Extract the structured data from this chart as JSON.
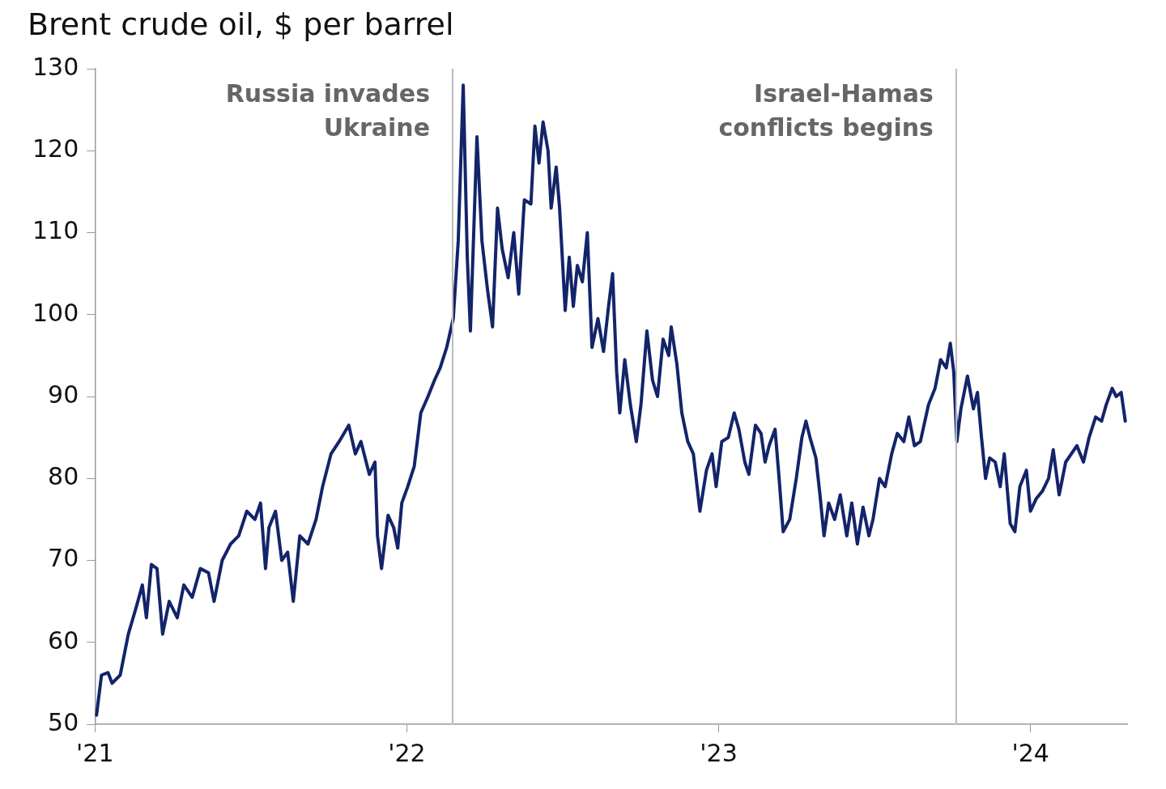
{
  "chart_data": {
    "type": "line",
    "title": "Brent crude oil, $ per barrel",
    "marker": "none",
    "line_style": "solid",
    "grid": false,
    "legend": false,
    "xlim": [
      2021,
      2024.31
    ],
    "xticks": [
      {
        "value": 2021,
        "label": "'21"
      },
      {
        "value": 2022,
        "label": "'22"
      },
      {
        "value": 2023,
        "label": "'23"
      },
      {
        "value": 2024,
        "label": "'24"
      }
    ],
    "ylim": [
      50,
      130
    ],
    "yticks": [
      50,
      60,
      70,
      80,
      90,
      100,
      110,
      120,
      130
    ],
    "ref_lines": [
      {
        "axis": "x",
        "value": 2022.147,
        "label": "Russia invades Ukraine",
        "color": "#bbbbbb"
      },
      {
        "axis": "x",
        "value": 2023.762,
        "label": "Israel-Hamas conflicts begins",
        "color": "#bbbbbb"
      }
    ],
    "series": [
      {
        "color": "#13246a",
        "x": [
          2021.005,
          2021.021,
          2021.042,
          2021.055,
          2021.081,
          2021.107,
          2021.134,
          2021.152,
          2021.165,
          2021.181,
          2021.199,
          2021.217,
          2021.238,
          2021.264,
          2021.285,
          2021.312,
          2021.338,
          2021.364,
          2021.382,
          2021.408,
          2021.435,
          2021.461,
          2021.487,
          2021.513,
          2021.531,
          2021.547,
          2021.558,
          2021.579,
          2021.599,
          2021.618,
          2021.636,
          2021.657,
          2021.683,
          2021.709,
          2021.73,
          2021.757,
          2021.783,
          2021.814,
          2021.835,
          2021.853,
          2021.88,
          2021.898,
          2021.906,
          2021.919,
          2021.94,
          2021.958,
          2021.971,
          2021.984,
          2022.003,
          2022.024,
          2022.045,
          2022.068,
          2022.089,
          2022.107,
          2022.128,
          2022.149,
          2022.165,
          2022.181,
          2022.194,
          2022.204,
          2022.225,
          2022.241,
          2022.259,
          2022.275,
          2022.291,
          2022.306,
          2022.325,
          2022.343,
          2022.359,
          2022.377,
          2022.398,
          2022.411,
          2022.424,
          2022.437,
          2022.453,
          2022.463,
          2022.479,
          2022.49,
          2022.508,
          2022.521,
          2022.534,
          2022.547,
          2022.563,
          2022.579,
          2022.594,
          2022.613,
          2022.631,
          2022.647,
          2022.66,
          2022.673,
          2022.683,
          2022.699,
          2022.717,
          2022.736,
          2022.751,
          2022.77,
          2022.788,
          2022.804,
          2022.822,
          2022.84,
          2022.848,
          2022.866,
          2022.882,
          2022.901,
          2022.919,
          2022.94,
          2022.961,
          2022.979,
          2022.992,
          2023.01,
          2023.031,
          2023.05,
          2023.065,
          2023.084,
          2023.097,
          2023.118,
          2023.136,
          2023.149,
          2023.162,
          2023.181,
          2023.194,
          2023.207,
          2023.228,
          2023.249,
          2023.267,
          2023.28,
          2023.293,
          2023.312,
          2023.325,
          2023.338,
          2023.353,
          2023.372,
          2023.39,
          2023.411,
          2023.427,
          2023.445,
          2023.463,
          2023.482,
          2023.495,
          2023.516,
          2023.534,
          2023.555,
          2023.573,
          2023.594,
          2023.61,
          2023.628,
          2023.647,
          2023.673,
          2023.694,
          2023.712,
          2023.73,
          2023.743,
          2023.754,
          2023.764,
          2023.777,
          2023.798,
          2023.817,
          2023.83,
          2023.843,
          2023.856,
          2023.869,
          2023.887,
          2023.903,
          2023.916,
          2023.935,
          2023.95,
          2023.966,
          2023.987,
          2024.0,
          2024.018,
          2024.039,
          2024.058,
          2024.073,
          2024.092,
          2024.113,
          2024.131,
          2024.149,
          2024.17,
          2024.188,
          2024.209,
          2024.228,
          2024.243,
          2024.262,
          2024.275,
          2024.291,
          2024.304
        ],
        "values": [
          51.1,
          56,
          56.3,
          55,
          56,
          61,
          64.5,
          67,
          63,
          69.5,
          69,
          61,
          65,
          63,
          67,
          65.5,
          69,
          68.5,
          65,
          70,
          72,
          73,
          76,
          75,
          77,
          69,
          74,
          76,
          70,
          71,
          65,
          73,
          72,
          75,
          79,
          83,
          84.5,
          86.5,
          83,
          84.5,
          80.5,
          82,
          73,
          69,
          75.5,
          74,
          71.5,
          77,
          79,
          81.5,
          88,
          90,
          92,
          93.5,
          96,
          99.5,
          109,
          128,
          107,
          98,
          121.7,
          109,
          103,
          98.5,
          113,
          108,
          104.5,
          110,
          102.5,
          114,
          113.5,
          123,
          118.5,
          123.5,
          120,
          113,
          118,
          113,
          100.5,
          107,
          101,
          106,
          104,
          110,
          96,
          99.5,
          95.5,
          101,
          105,
          93,
          88,
          94.5,
          89,
          84.5,
          89,
          98,
          92,
          90,
          97,
          95,
          98.5,
          94,
          88,
          84.5,
          83,
          76,
          81,
          83,
          79,
          84.5,
          85,
          88,
          86,
          82,
          80.5,
          86.5,
          85.5,
          82,
          84,
          86,
          80,
          73.5,
          75,
          80,
          85,
          87,
          85,
          82.5,
          78,
          73,
          77,
          75,
          78,
          73,
          77,
          72,
          76.5,
          73,
          75,
          80,
          79,
          83,
          85.5,
          84.5,
          87.5,
          84,
          84.5,
          89,
          91,
          94.5,
          93.5,
          96.5,
          93,
          84.5,
          88.5,
          92.5,
          88.5,
          90.5,
          85,
          80,
          82.5,
          82,
          79,
          83,
          74.5,
          73.5,
          79,
          81,
          76,
          77.5,
          78.5,
          80,
          83.5,
          78,
          82,
          83,
          84,
          82,
          85,
          87.5,
          87,
          89,
          91,
          90,
          90.5,
          87
        ]
      }
    ]
  }
}
